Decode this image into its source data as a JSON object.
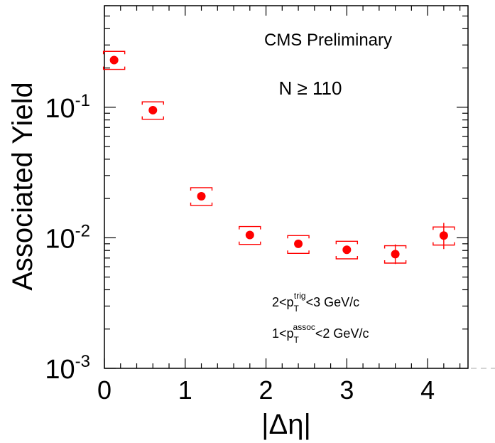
{
  "chart_data": {
    "type": "scatter",
    "title": "",
    "xlabel": "|Δη|",
    "ylabel": "Associated Yield",
    "xlim": [
      0,
      4.5
    ],
    "ylim": [
      0.001,
      0.6
    ],
    "y_scale": "log",
    "x_ticks": [
      {
        "value": 0,
        "label": "0"
      },
      {
        "value": 1,
        "label": "1"
      },
      {
        "value": 2,
        "label": "2"
      },
      {
        "value": 3,
        "label": "3"
      },
      {
        "value": 4,
        "label": "4"
      }
    ],
    "y_ticks": [
      {
        "value": 0.001,
        "base": "10",
        "exp": "-3"
      },
      {
        "value": 0.01,
        "base": "10",
        "exp": "-2"
      },
      {
        "value": 0.1,
        "base": "10",
        "exp": "-1"
      }
    ],
    "series": [
      {
        "color": "#ff0000",
        "points": [
          {
            "x": 0.12,
            "y": 0.23,
            "sys_low": 0.195,
            "sys_high": 0.268
          },
          {
            "x": 0.6,
            "y": 0.095,
            "sys_low": 0.081,
            "sys_high": 0.11
          },
          {
            "x": 1.2,
            "y": 0.0208,
            "sys_low": 0.0177,
            "sys_high": 0.0242
          },
          {
            "x": 1.8,
            "y": 0.0105,
            "sys_low": 0.0089,
            "sys_high": 0.0122
          },
          {
            "x": 2.4,
            "y": 0.009,
            "sys_low": 0.0076,
            "sys_high": 0.0104
          },
          {
            "x": 3.0,
            "y": 0.0081,
            "sys_low": 0.0069,
            "sys_high": 0.0094
          },
          {
            "x": 3.6,
            "y": 0.0075,
            "sys_low": 0.0064,
            "sys_high": 0.0087,
            "stat_low": 0.0063,
            "stat_high": 0.0089
          },
          {
            "x": 4.2,
            "y": 0.0104,
            "sys_low": 0.0088,
            "sys_high": 0.0121,
            "stat_low": 0.0082,
            "stat_high": 0.013
          }
        ]
      }
    ],
    "annotations": {
      "cms": "CMS Preliminary",
      "n_label": "N ≥ 110",
      "trig": {
        "prefix": "2<p",
        "sub": "T",
        "sup": "trig",
        "suffix": "<3 GeV/c"
      },
      "assoc": {
        "prefix": "1<p",
        "sub": "T",
        "sup": "assoc",
        "suffix": "<2 GeV/c"
      }
    }
  }
}
